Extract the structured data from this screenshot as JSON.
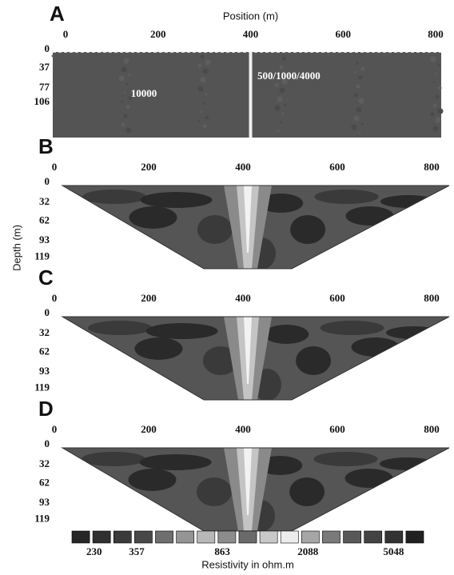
{
  "chart_data": [
    {
      "type": "model",
      "label": "A",
      "xlabel": "Position (m)",
      "xlim": [
        0,
        800
      ],
      "xticks": [
        0,
        200,
        400,
        600,
        800
      ],
      "ylim": [
        0,
        177
      ],
      "yticks": [
        0,
        37,
        77,
        106
      ],
      "annotations": [
        "10000",
        "500/1000/4000"
      ]
    },
    {
      "type": "section",
      "label": "B",
      "xlim": [
        0,
        800
      ],
      "xticks": [
        0,
        200,
        400,
        600,
        800
      ],
      "ylim": [
        0,
        140
      ],
      "yticks": [
        0,
        32,
        62,
        93,
        119
      ]
    },
    {
      "type": "section",
      "label": "C",
      "ylabel": "Depth (m)",
      "xlim": [
        0,
        800
      ],
      "xticks": [
        0,
        200,
        400,
        600,
        800
      ],
      "ylim": [
        0,
        140
      ],
      "yticks": [
        0,
        32,
        62,
        93,
        119
      ]
    },
    {
      "type": "section",
      "label": "D",
      "xlim": [
        0,
        800
      ],
      "xticks": [
        0,
        200,
        400,
        600,
        800
      ],
      "ylim": [
        0,
        140
      ],
      "yticks": [
        0,
        32,
        62,
        93,
        119
      ]
    },
    {
      "type": "colorbar",
      "title": "Resistivity in ohm.m",
      "log": true,
      "lim": [
        180,
        7000
      ],
      "ticks": [
        230,
        357,
        863,
        2088,
        5048
      ],
      "colors": [
        "#262626",
        "#303030",
        "#3a3a3a",
        "#484848",
        "#6e6e6e",
        "#959595",
        "#b8b8b8",
        "#8c8c8c",
        "#6a6a6a",
        "#c8c8c8",
        "#ececec",
        "#a6a6a6",
        "#7a7a7a",
        "#585858",
        "#434343",
        "#323232",
        "#202020"
      ]
    }
  ]
}
